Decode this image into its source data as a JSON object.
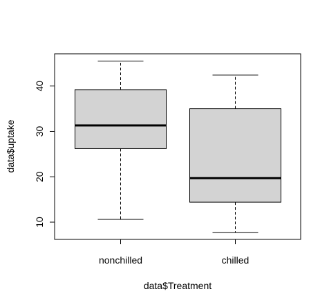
{
  "chart_data": {
    "type": "boxplot",
    "categories": [
      "nonchilled",
      "chilled"
    ],
    "boxes": [
      {
        "min": 10.6,
        "q1": 26.2,
        "median": 31.3,
        "q3": 39.2,
        "max": 45.5
      },
      {
        "min": 7.7,
        "q1": 14.4,
        "median": 19.7,
        "q3": 35.0,
        "max": 42.4
      }
    ],
    "xlabel": "data$Treatment",
    "ylabel": "data$uptake",
    "yticks": [
      10,
      20,
      30,
      40
    ],
    "ylim": [
      6.2,
      47.1
    ],
    "grid": false,
    "legend": "none",
    "colors": {
      "box_fill": "#d3d3d3",
      "stroke": "#000000",
      "background": "#ffffff"
    }
  }
}
